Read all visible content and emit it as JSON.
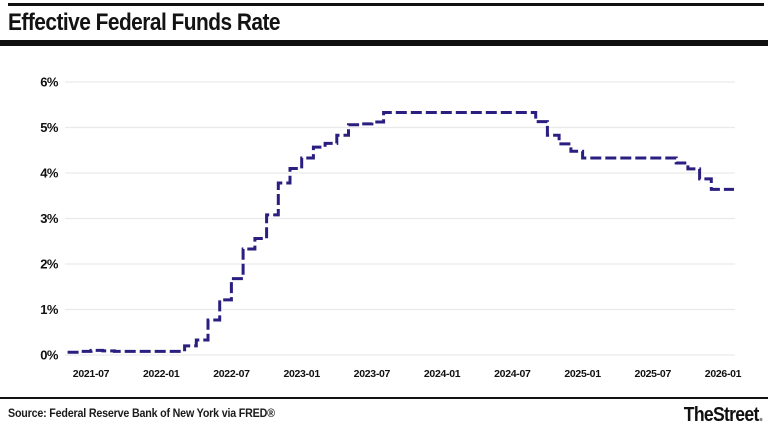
{
  "header": {
    "title": "Effective Federal Funds Rate"
  },
  "footer": {
    "source": "Source: Federal Reserve Bank of New York via FRED®",
    "brand": "TheStreet",
    "brand_period": "."
  },
  "colors": {
    "line": "#2a1f80",
    "grid": "#e9e9e9",
    "text": "#111111",
    "rule": "#111111"
  },
  "chart_data": {
    "type": "line",
    "step": true,
    "dashed": true,
    "title": "Effective Federal Funds Rate",
    "xlabel": "",
    "ylabel": "",
    "ylim": [
      0,
      6
    ],
    "grid": "horizontal",
    "legend": "none",
    "y_tick_labels": [
      "0%",
      "1%",
      "2%",
      "3%",
      "4%",
      "5%",
      "6%"
    ],
    "x_tick_labels": [
      "2021-07",
      "2022-01",
      "2022-07",
      "2023-01",
      "2023-07",
      "2024-01",
      "2024-07",
      "2025-01",
      "2025-07",
      "2026-01"
    ],
    "x": [
      "2021-05",
      "2021-06",
      "2021-07",
      "2021-08",
      "2021-09",
      "2021-10",
      "2021-11",
      "2021-12",
      "2022-01",
      "2022-02",
      "2022-03",
      "2022-04",
      "2022-05",
      "2022-06",
      "2022-07",
      "2022-08",
      "2022-09",
      "2022-10",
      "2022-11",
      "2022-12",
      "2023-01",
      "2023-02",
      "2023-03",
      "2023-04",
      "2023-05",
      "2023-06",
      "2023-07",
      "2023-08",
      "2023-09",
      "2023-10",
      "2023-11",
      "2023-12",
      "2024-01",
      "2024-02",
      "2024-03",
      "2024-04",
      "2024-05",
      "2024-06",
      "2024-07",
      "2024-08",
      "2024-09",
      "2024-10",
      "2024-11",
      "2024-12",
      "2025-01",
      "2025-02",
      "2025-03",
      "2025-04",
      "2025-05",
      "2025-06",
      "2025-07",
      "2025-08",
      "2025-09",
      "2025-10",
      "2025-11",
      "2025-12",
      "2026-01"
    ],
    "values": [
      0.06,
      0.08,
      0.1,
      0.09,
      0.08,
      0.08,
      0.08,
      0.08,
      0.08,
      0.08,
      0.2,
      0.33,
      0.77,
      1.21,
      1.68,
      2.33,
      2.56,
      3.08,
      3.78,
      4.1,
      4.33,
      4.57,
      4.65,
      4.83,
      5.06,
      5.08,
      5.12,
      5.33,
      5.33,
      5.33,
      5.33,
      5.33,
      5.33,
      5.33,
      5.33,
      5.33,
      5.33,
      5.33,
      5.33,
      5.33,
      5.13,
      4.83,
      4.64,
      4.48,
      4.33,
      4.33,
      4.33,
      4.33,
      4.33,
      4.33,
      4.33,
      4.33,
      4.22,
      4.09,
      3.87,
      3.64,
      3.64
    ]
  }
}
